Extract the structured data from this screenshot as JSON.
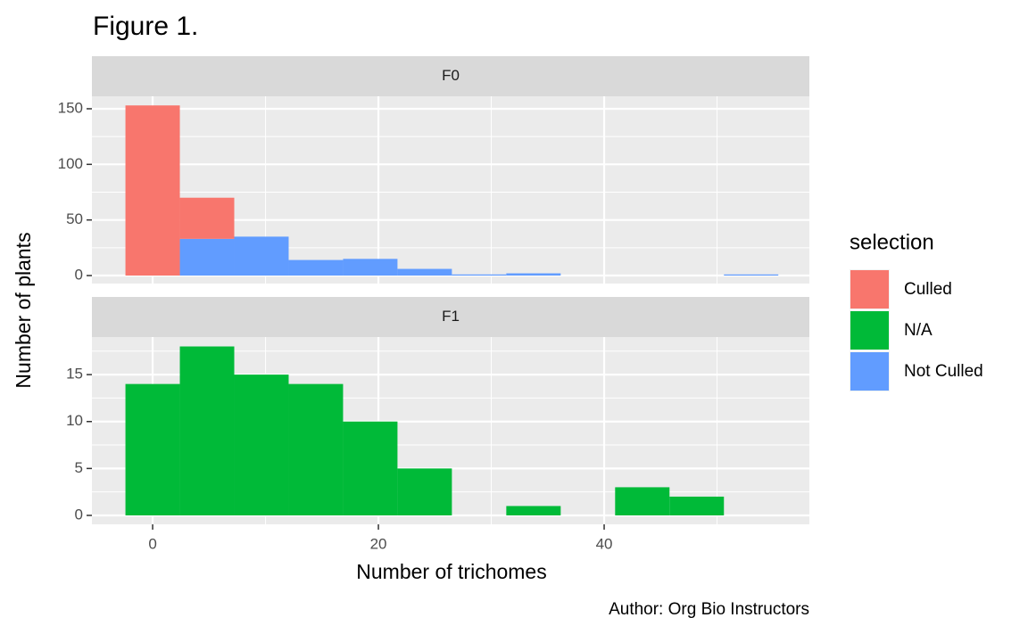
{
  "chart_data": {
    "type": "histogram",
    "title": "Figure 1.",
    "x_label": "Number of trichomes",
    "y_label": "Number of plants",
    "caption": "Author: Org Bio Instructors",
    "legend_title": "selection",
    "bins": [
      -2.41,
      2.41,
      7.23,
      12.05,
      16.87,
      21.69,
      26.51,
      31.33,
      36.15,
      40.97,
      45.79,
      50.61,
      55.43
    ],
    "xlim": [
      -5.38,
      58.18
    ],
    "xticks": [
      0,
      20,
      40
    ],
    "x_minor_ticks": [
      10,
      30,
      50
    ],
    "grid": true,
    "facets": [
      {
        "label": "F0",
        "ylim": [
          -7.2,
          161.2
        ],
        "yticks": [
          0,
          50,
          100,
          150
        ],
        "y_minor_ticks": [
          25,
          75,
          125
        ],
        "stacked": true,
        "series": [
          {
            "name": "Culled",
            "color": "#f8766d",
            "values": [
              153,
              37,
              0,
              0,
              0,
              0,
              0,
              0,
              0,
              0,
              0,
              0
            ]
          },
          {
            "name": "Not Culled",
            "color": "#619cff",
            "values": [
              0,
              33,
              35,
              14,
              15,
              6,
              1,
              2,
              0,
              0,
              0,
              1
            ]
          }
        ]
      },
      {
        "label": "F1",
        "ylim": [
          -0.95,
          19.0
        ],
        "yticks": [
          0,
          5,
          10,
          15
        ],
        "y_minor_ticks": [
          2.5,
          7.5,
          12.5,
          17.5
        ],
        "stacked": true,
        "series": [
          {
            "name": "N/A",
            "color": "#00ba38",
            "values": [
              14,
              18,
              15,
              14,
              10,
              5,
              0,
              1,
              0,
              3,
              2,
              0
            ]
          }
        ]
      }
    ]
  }
}
